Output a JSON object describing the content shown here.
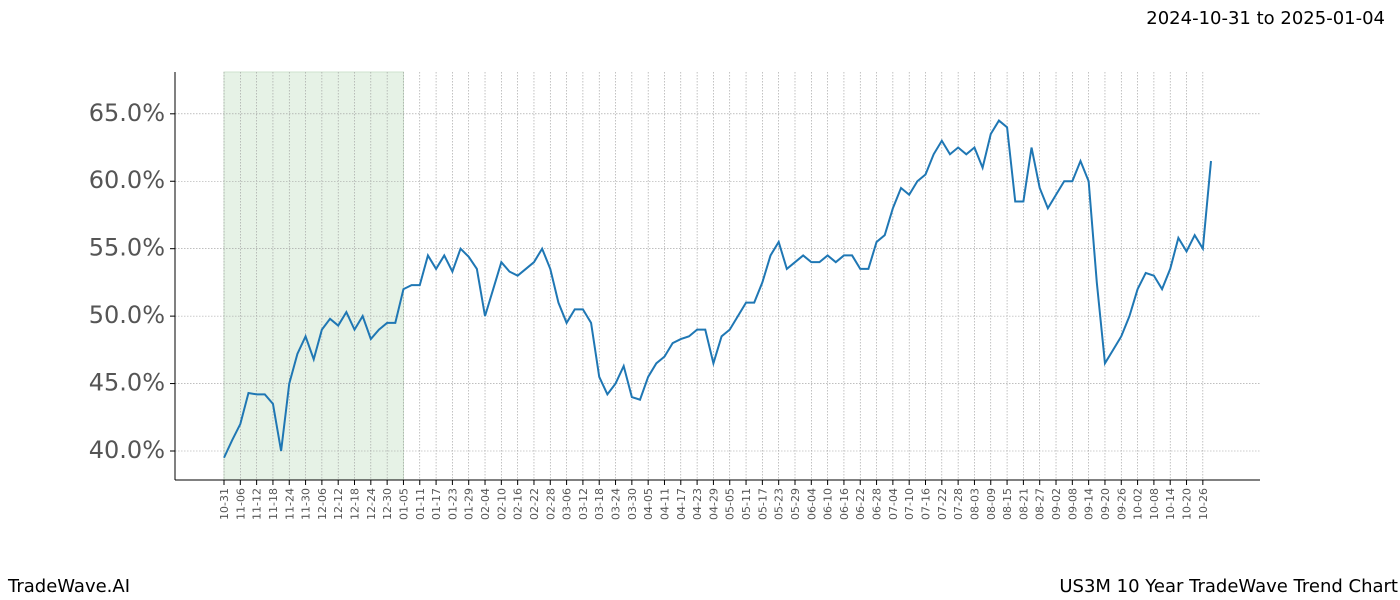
{
  "header": "2024-10-31 to 2025-01-04",
  "footer_left": "TradeWave.AI",
  "footer_right": "US3M 10 Year TradeWave Trend Chart",
  "chart_data": {
    "type": "line",
    "categories": [
      "10-31",
      null,
      "11-06",
      null,
      "11-12",
      null,
      "11-18",
      null,
      "11-24",
      null,
      "11-30",
      null,
      "12-06",
      null,
      "12-12",
      null,
      "12-18",
      null,
      "12-24",
      null,
      "12-30",
      null,
      "01-05",
      null,
      "01-11",
      null,
      "01-17",
      null,
      "01-23",
      null,
      "01-29",
      null,
      "02-04",
      null,
      "02-10",
      null,
      "02-16",
      null,
      "02-22",
      null,
      "02-28",
      null,
      "03-06",
      null,
      "03-12",
      null,
      "03-18",
      null,
      "03-24",
      null,
      "03-30",
      null,
      "04-05",
      null,
      "04-11",
      null,
      "04-17",
      null,
      "04-23",
      null,
      "04-29",
      null,
      "05-05",
      null,
      "05-11",
      null,
      "05-17",
      null,
      "05-23",
      null,
      "05-29",
      null,
      "06-04",
      null,
      "06-10",
      null,
      "06-16",
      null,
      "06-22",
      null,
      "06-28",
      null,
      "07-04",
      null,
      "07-10",
      null,
      "07-16",
      null,
      "07-22",
      null,
      "07-28",
      null,
      "08-03",
      null,
      "08-09",
      null,
      "08-15",
      null,
      "08-21",
      null,
      "08-27",
      null,
      "09-02",
      null,
      "09-08",
      null,
      "09-14",
      null,
      "09-20",
      null,
      "09-26",
      null,
      "10-02",
      null,
      "10-08",
      null,
      "10-14",
      null,
      "10-20",
      null,
      "10-26",
      null
    ],
    "series": [
      {
        "color": "#1f77b4",
        "values": [
          39.5,
          40.8,
          42,
          44.3,
          44.2,
          44.2,
          43.5,
          40.0,
          45.0,
          47.2,
          48.5,
          46.8,
          49.0,
          49.8,
          49.3,
          50.3,
          49.0,
          50.0,
          48.3,
          49.0,
          49.5,
          49.5,
          52.0,
          52.3,
          52.3,
          54.5,
          53.5,
          54.5,
          53.3,
          55.0,
          54.4,
          53.5,
          50.0,
          52.0,
          54.0,
          53.3,
          53.0,
          53.5,
          54.0,
          55.0,
          53.5,
          51.0,
          49.5,
          50.5,
          50.5,
          49.5,
          45.5,
          44.2,
          45.0,
          46.3,
          44.0,
          43.8,
          45.5,
          46.5,
          47.0,
          48.0,
          48.3,
          48.5,
          49.0,
          49.0,
          46.5,
          48.5,
          49.0,
          50.0,
          51.0,
          51.0,
          52.5,
          54.5,
          55.5,
          53.5,
          54.0,
          54.5,
          54.0,
          54.0,
          54.5,
          54.0,
          54.5,
          54.5,
          53.5,
          53.5,
          55.5,
          56.0,
          58.0,
          59.5,
          59.0,
          60.0,
          60.5,
          62.0,
          63.0,
          62.0,
          62.5,
          62.0,
          62.5,
          61.0,
          63.5,
          64.5,
          64.0,
          58.5,
          58.5,
          62.5,
          59.5,
          58.0,
          59.0,
          60.0,
          60.0,
          61.5,
          60.0,
          52.5,
          46.5,
          47.5,
          48.5,
          50.0,
          52.0,
          53.2,
          53.0,
          52.0,
          53.5,
          55.8,
          54.8,
          56.0,
          55.0,
          61.5
        ]
      }
    ],
    "ylim": [
      37.85,
      68.1
    ],
    "yticks": [
      {
        "value": 40,
        "label": "40.0%"
      },
      {
        "value": 45,
        "label": "45.0%"
      },
      {
        "value": 50,
        "label": "50.0%"
      },
      {
        "value": 55,
        "label": "55.0%"
      },
      {
        "value": 60,
        "label": "60.0%"
      },
      {
        "value": 65,
        "label": "65.0%"
      }
    ],
    "grid": true,
    "highlight": {
      "from": "10-31",
      "to": "01-05",
      "color": "#e6f2e6"
    }
  }
}
